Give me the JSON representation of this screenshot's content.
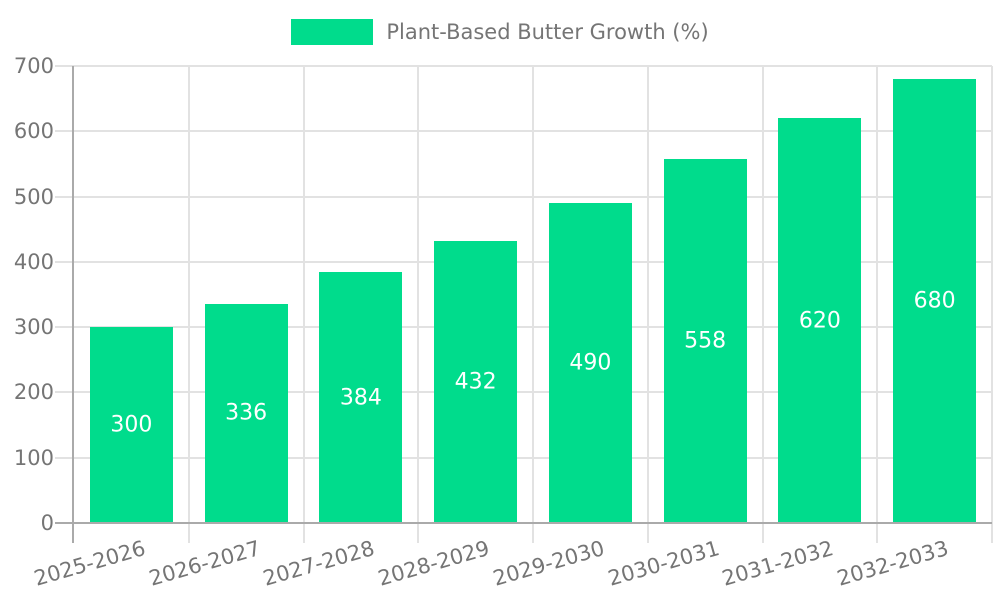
{
  "legend": {
    "label": "Plant-Based Butter Growth (%)"
  },
  "chart_data": {
    "type": "bar",
    "title": "Plant-Based Butter Growth (%)",
    "categories": [
      "2025-2026",
      "2026-2027",
      "2027-2028",
      "2028-2029",
      "2029-2030",
      "2030-2031",
      "2031-2032",
      "2032-2033"
    ],
    "values": [
      300,
      336,
      384,
      432,
      490,
      558,
      620,
      680
    ],
    "xlabel": "",
    "ylabel": "",
    "ylim": [
      0,
      700
    ],
    "yticks": [
      0,
      100,
      200,
      300,
      400,
      500,
      600,
      700
    ],
    "grid": true,
    "legend_position": "top",
    "value_labels": "inside-center",
    "colors": {
      "bar": "#00DC8C",
      "value_label": "#ffffff",
      "axis": "#aaaaaa",
      "grid": "#e2e2e2",
      "tick_text": "#757575",
      "legend_text": "#757575"
    }
  }
}
